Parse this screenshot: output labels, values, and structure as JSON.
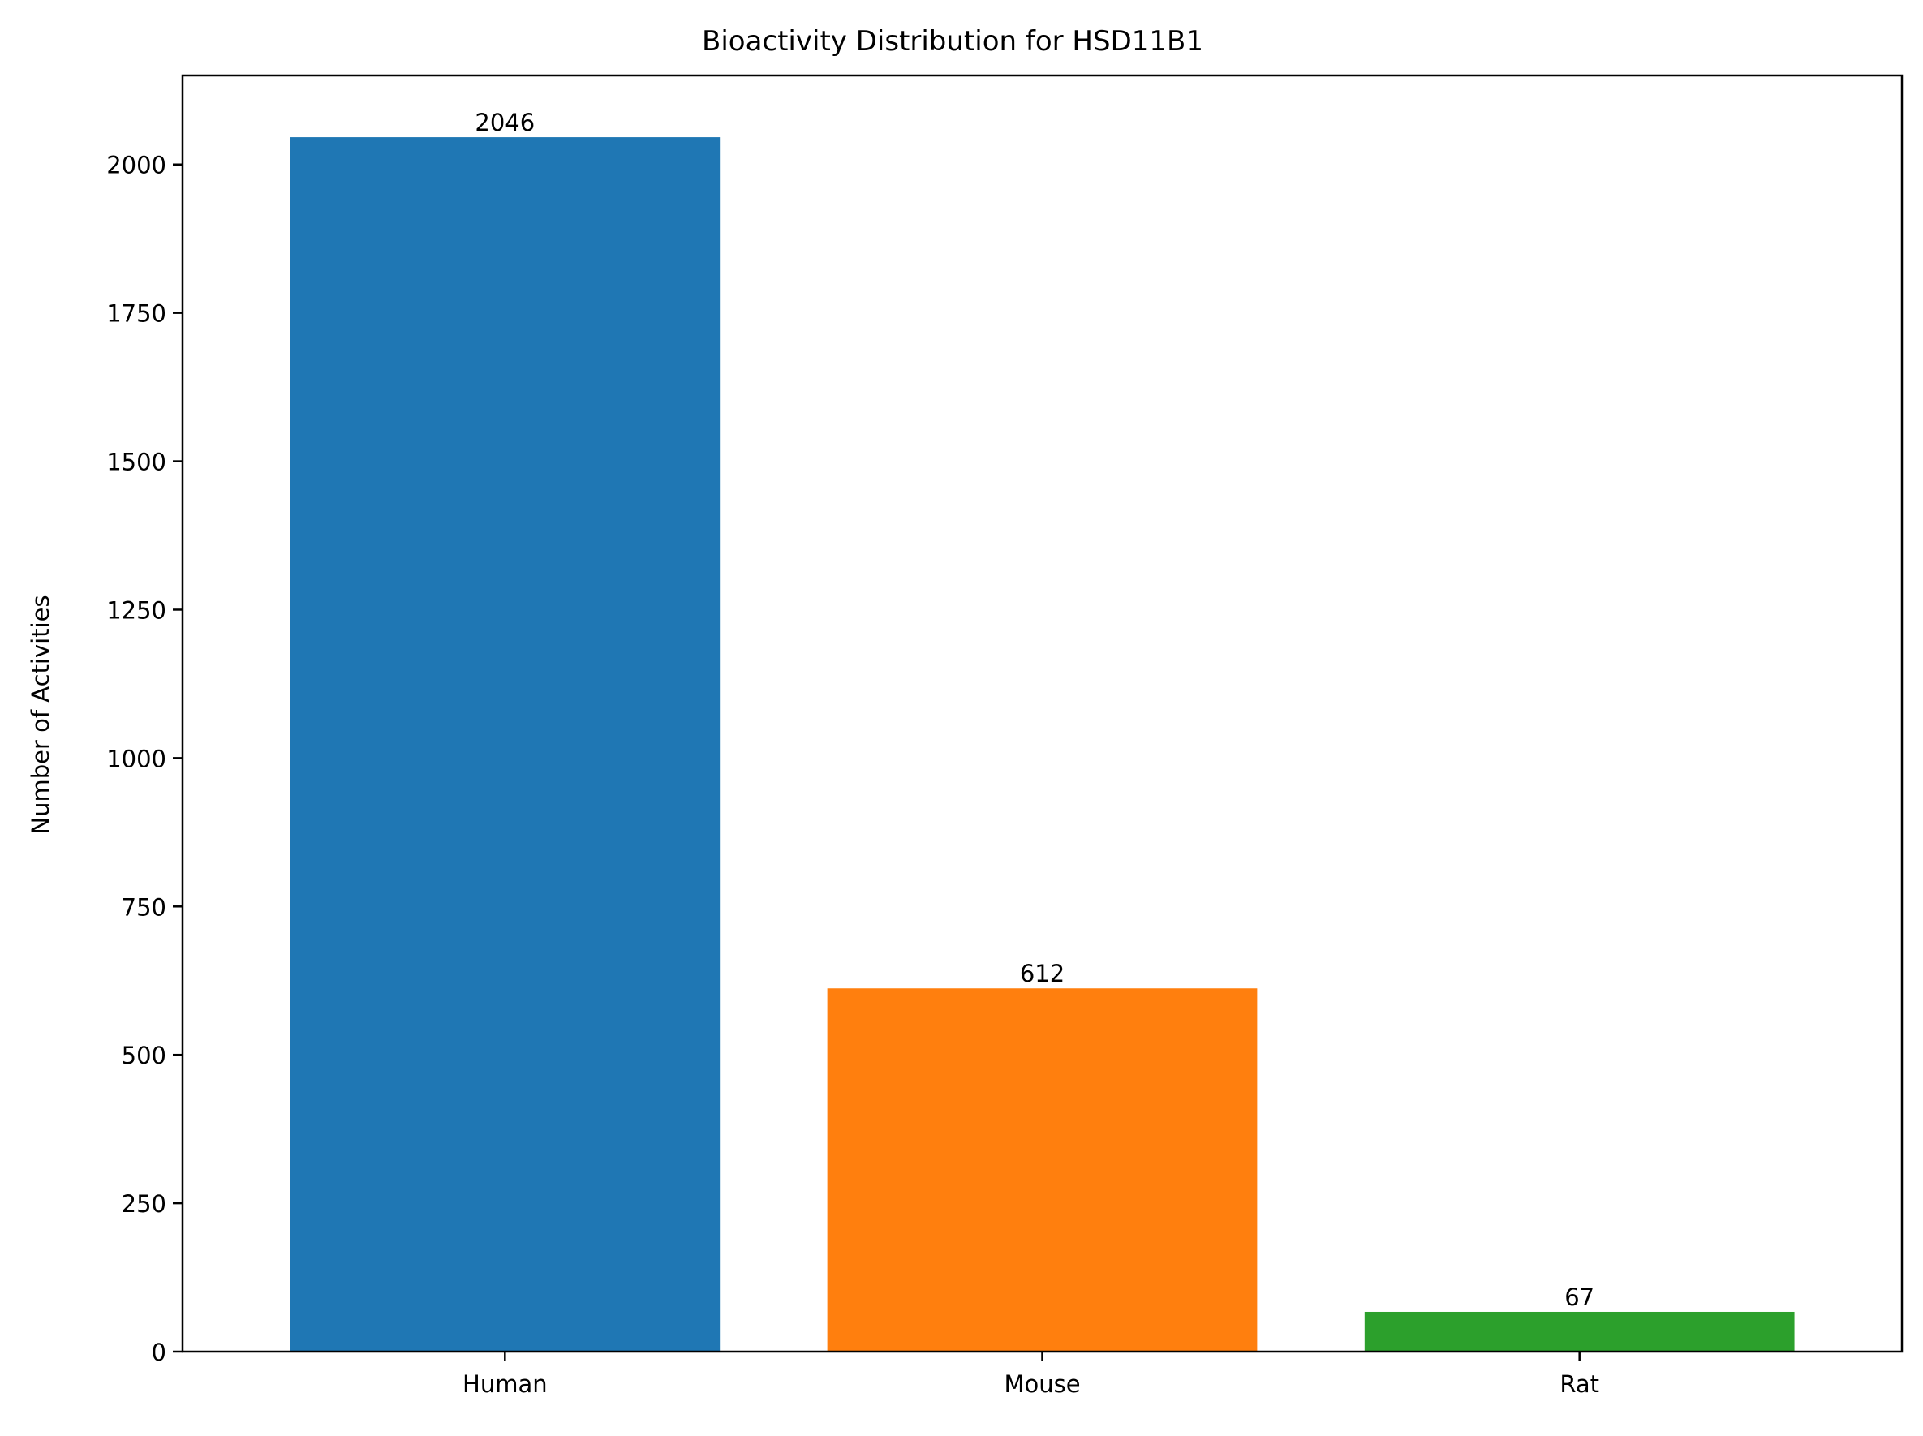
{
  "chart_data": {
    "type": "bar",
    "title": "Bioactivity Distribution for HSD11B1",
    "xlabel": "",
    "ylabel": "Number of Activities",
    "categories": [
      "Human",
      "Mouse",
      "Rat"
    ],
    "values": [
      2046,
      612,
      67
    ],
    "data_labels": [
      "2046",
      "612",
      "67"
    ],
    "colors": [
      "#1f77b4",
      "#ff7f0e",
      "#2ca02c"
    ],
    "ylim": [
      0,
      2150
    ],
    "yticks": [
      0,
      250,
      500,
      750,
      1000,
      1250,
      1500,
      1750,
      2000
    ],
    "ytick_labels": [
      "0",
      "250",
      "500",
      "750",
      "1000",
      "1250",
      "1500",
      "1750",
      "2000"
    ],
    "grid": false,
    "legend": "none"
  }
}
